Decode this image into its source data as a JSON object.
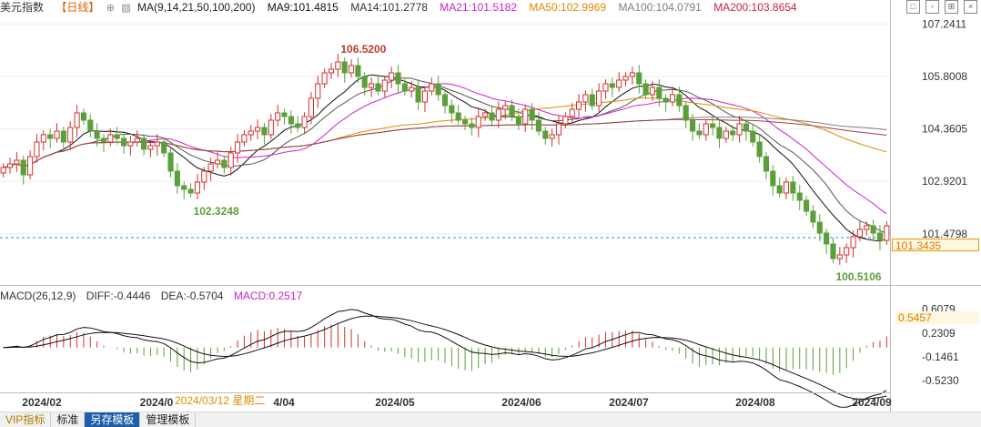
{
  "legend": {
    "symbol": "美元指数",
    "period_button": "【日线】",
    "ma_label": "MA(9,14,21,50,100,200)",
    "ma9": "MA9:101.4815",
    "ma14": "MA14:101.2778",
    "ma21": "MA21:101.5182",
    "ma50": "MA50:102.9969",
    "ma100": "MA100:104.0791",
    "ma200": "MA200:103.8654"
  },
  "macd_legend": {
    "label": "MACD(26,12,9)",
    "diff": "DIFF:-0.4446",
    "dea": "DEA:-0.5704",
    "macd": "MACD:0.2517"
  },
  "price_axis": [
    "107.2411",
    "105.8008",
    "104.3605",
    "102.9201",
    "101.4798"
  ],
  "macd_axis": [
    "0.6079",
    "0.2309",
    "-0.1461",
    "-0.5230"
  ],
  "price_tag": "101.3435",
  "macd_tag": "0.5457",
  "annotations": {
    "high": "106.5200",
    "low1": "102.3248",
    "low2": "100.5106"
  },
  "date_labels": [
    "2024/02",
    "2024/0",
    "4/04",
    "2024/05",
    "2024/06",
    "2024/07",
    "2024/08",
    "2024/09"
  ],
  "date_tip": "2024/03/12 星期二",
  "bottom_tabs": [
    "VIP指标",
    "标准",
    "另存模板",
    "管理模板"
  ],
  "colors": {
    "up": "#d0312d",
    "down": "#5aa03a",
    "ma9": "#111111",
    "ma14": "#555555",
    "ma21": "#cc22cc",
    "ma50": "#e08a00",
    "ma100": "#808080",
    "ma200": "#a04040",
    "dea": "#111111",
    "diff": "#111111"
  },
  "chart_data": {
    "type": "candlestick",
    "title": "美元指数 日线",
    "x_range": [
      "2024-01-24",
      "2024-09-06"
    ],
    "y_range": [
      100.1,
      107.45
    ],
    "close_series": [
      103.3,
      103.4,
      103.5,
      103.1,
      103.6,
      104.0,
      104.2,
      104.1,
      104.3,
      104.0,
      104.4,
      104.8,
      104.6,
      104.3,
      104.1,
      104.0,
      104.2,
      104.1,
      103.9,
      104.0,
      104.1,
      103.8,
      103.9,
      104.0,
      103.7,
      103.2,
      102.8,
      102.7,
      102.6,
      102.9,
      103.2,
      103.4,
      103.5,
      103.3,
      103.7,
      104.0,
      104.2,
      104.3,
      104.4,
      104.2,
      104.6,
      104.8,
      104.7,
      104.5,
      104.4,
      104.7,
      105.2,
      105.6,
      105.9,
      106.0,
      106.2,
      105.9,
      106.1,
      105.8,
      105.5,
      105.6,
      105.4,
      105.7,
      105.9,
      105.6,
      105.4,
      105.5,
      105.1,
      105.4,
      105.6,
      105.3,
      105.0,
      104.8,
      104.6,
      104.5,
      104.4,
      104.7,
      104.8,
      104.6,
      104.9,
      105.0,
      104.7,
      104.5,
      104.9,
      104.6,
      104.3,
      104.1,
      104.2,
      104.5,
      104.7,
      104.9,
      105.1,
      105.3,
      105.0,
      105.4,
      105.6,
      105.5,
      105.7,
      105.8,
      105.9,
      105.6,
      105.3,
      105.5,
      105.2,
      105.1,
      105.3,
      105.0,
      104.6,
      104.3,
      104.2,
      104.5,
      104.4,
      104.1,
      104.3,
      104.2,
      104.5,
      104.3,
      104.0,
      103.6,
      103.2,
      102.8,
      102.6,
      102.9,
      102.6,
      102.4,
      102.1,
      101.8,
      101.5,
      101.2,
      100.8,
      100.9,
      101.1,
      101.4,
      101.6,
      101.7,
      101.5,
      101.3,
      101.7
    ],
    "annotations": [
      {
        "label": "106.5200",
        "type": "high"
      },
      {
        "label": "102.3248",
        "type": "low"
      },
      {
        "label": "100.5106",
        "type": "low"
      }
    ],
    "indicator": {
      "name": "MACD(26,12,9)",
      "y_range": [
        -0.7,
        0.72
      ]
    }
  }
}
